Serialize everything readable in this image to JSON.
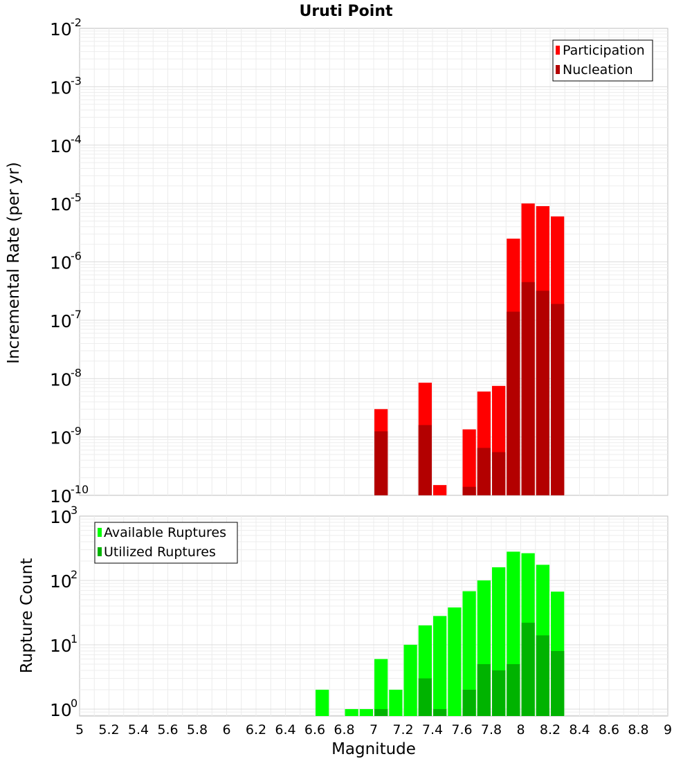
{
  "chart_data": [
    {
      "type": "bar",
      "title": "Uruti Point",
      "xlabel": "",
      "ylabel": "Incremental Rate (per yr)",
      "yscale": "log",
      "xlim": [
        5,
        9
      ],
      "ylim": [
        1e-10,
        0.01
      ],
      "y_ticks": [
        {
          "base": "10",
          "exp": "-10"
        },
        {
          "base": "10",
          "exp": "-9"
        },
        {
          "base": "10",
          "exp": "-8"
        },
        {
          "base": "10",
          "exp": "-7"
        },
        {
          "base": "10",
          "exp": "-6"
        },
        {
          "base": "10",
          "exp": "-5"
        },
        {
          "base": "10",
          "exp": "-4"
        },
        {
          "base": "10",
          "exp": "-3"
        },
        {
          "base": "10",
          "exp": "-2"
        }
      ],
      "grid": true,
      "legend_position": "top-right",
      "colors": {
        "Participation": "#ff0000",
        "Nucleation": "#b30000"
      },
      "series": [
        {
          "name": "Participation",
          "x": [
            7.05,
            7.35,
            7.45,
            7.65,
            7.75,
            7.85,
            7.95,
            8.05,
            8.15,
            8.25
          ],
          "values": [
            3e-09,
            8.5e-09,
            1.5e-10,
            1.35e-09,
            6e-09,
            7.5e-09,
            2.5e-06,
            1e-05,
            9e-06,
            6e-06
          ]
        },
        {
          "name": "Nucleation",
          "x": [
            7.05,
            7.35,
            7.65,
            7.75,
            7.85,
            7.95,
            8.05,
            8.15,
            8.25
          ],
          "values": [
            1.25e-09,
            1.6e-09,
            1.4e-10,
            6.5e-10,
            5.5e-10,
            1.4e-07,
            4.5e-07,
            3.2e-07,
            1.9e-07
          ]
        }
      ]
    },
    {
      "type": "bar",
      "xlabel": "Magnitude",
      "ylabel": "Rupture Count",
      "yscale": "log",
      "xlim": [
        5,
        9
      ],
      "ylim": [
        0.78,
        1000
      ],
      "x_ticks": [
        "5",
        "5.2",
        "5.4",
        "5.6",
        "5.8",
        "6",
        "6.2",
        "6.4",
        "6.6",
        "6.8",
        "7",
        "7.2",
        "7.4",
        "7.6",
        "7.8",
        "8",
        "8.2",
        "8.4",
        "8.6",
        "8.8",
        "9"
      ],
      "y_ticks": [
        {
          "base": "10",
          "exp": "0"
        },
        {
          "base": "10",
          "exp": "1"
        },
        {
          "base": "10",
          "exp": "2"
        },
        {
          "base": "10",
          "exp": "3"
        }
      ],
      "grid": true,
      "legend_position": "top-left",
      "colors": {
        "Available Ruptures": "#00ff00",
        "Utilized Ruptures": "#00b300"
      },
      "series": [
        {
          "name": "Available Ruptures",
          "x": [
            6.65,
            6.85,
            6.95,
            7.05,
            7.15,
            7.25,
            7.35,
            7.45,
            7.55,
            7.65,
            7.75,
            7.85,
            7.95,
            8.05,
            8.15,
            8.25
          ],
          "values": [
            2,
            1,
            1,
            6,
            2,
            10,
            20,
            28,
            38,
            68,
            100,
            160,
            280,
            265,
            175,
            67
          ]
        },
        {
          "name": "Utilized Ruptures",
          "x": [
            7.05,
            7.35,
            7.45,
            7.65,
            7.75,
            7.85,
            7.95,
            8.05,
            8.15,
            8.25
          ],
          "values": [
            1,
            3,
            1,
            2,
            5,
            4,
            5,
            22,
            14,
            8
          ]
        }
      ]
    }
  ]
}
